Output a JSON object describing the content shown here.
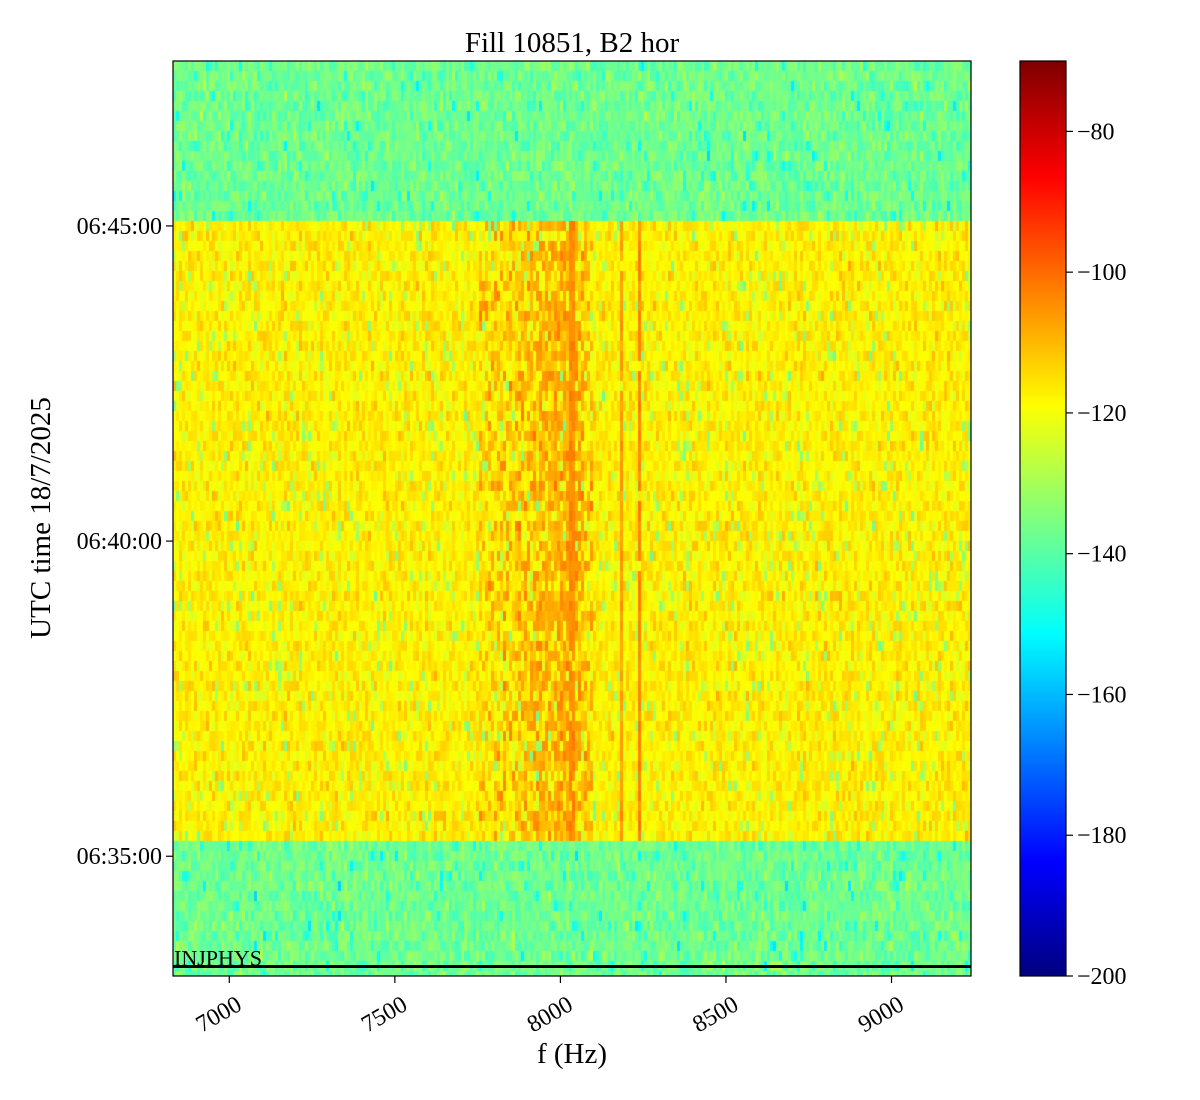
{
  "chart_data": {
    "type": "heatmap",
    "title": "Fill 10851, B2 hor",
    "xlabel": "f (Hz)",
    "ylabel": "UTC time 18/7/2025",
    "xlim": [
      6830,
      9240
    ],
    "x_ticks": [
      7000,
      7500,
      8000,
      8500,
      9000
    ],
    "x_tick_labels": [
      "7000",
      "7500",
      "8000",
      "8500",
      "9000"
    ],
    "ylim": [
      "06:33:06",
      "06:47:37"
    ],
    "y_ticks": [
      "06:35:00",
      "06:40:00",
      "06:45:00"
    ],
    "y_tick_labels": [
      "06:35:00",
      "06:40:00",
      "06:45:00"
    ],
    "colormap": "jet",
    "colorbar": {
      "range": [
        -200,
        -70
      ],
      "ticks": [
        -200,
        -180,
        -160,
        -140,
        -120,
        -100,
        -80
      ],
      "tick_labels": [
        "−200",
        "−180",
        "−160",
        "−140",
        "−120",
        "−100",
        "−80"
      ]
    },
    "background_level_db": -137,
    "active_period": {
      "start": "06:35:17",
      "end": "06:45:07",
      "level_db": -117
    },
    "spectral_features": [
      {
        "type": "band",
        "f_low_hz": 7750,
        "f_high_hz": 8100,
        "level_db": -108
      },
      {
        "type": "line",
        "f_hz": 8035,
        "level_db": -104
      },
      {
        "type": "line",
        "f_hz": 8185,
        "level_db": -106
      },
      {
        "type": "line",
        "f_hz": 8238,
        "level_db": -103
      }
    ],
    "annotation": {
      "text": "INJPHYS",
      "time": "06:33:15"
    }
  }
}
